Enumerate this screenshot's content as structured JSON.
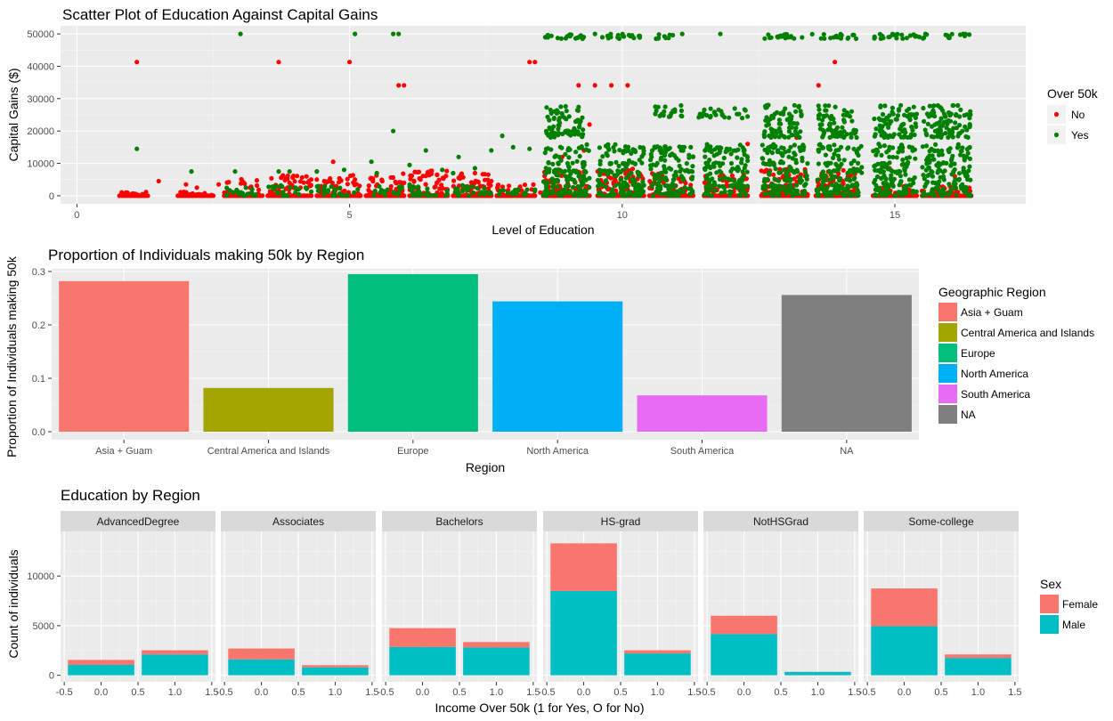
{
  "chart_data": [
    {
      "type": "scatter",
      "title": "Scatter Plot of Education Against Capital Gains",
      "xlabel": "Level of Education",
      "ylabel": "Capital Gains ($)",
      "xlim": [
        -0.3,
        17.4
      ],
      "ylim": [
        -2500,
        52500
      ],
      "xticks": [
        0,
        5,
        10,
        15
      ],
      "yticks": [
        0,
        10000,
        20000,
        30000,
        40000,
        50000
      ],
      "grid": true,
      "legend": {
        "title": "Over 50k",
        "position": "right",
        "entries": [
          "No",
          "Yes"
        ]
      },
      "series": [
        {
          "name": "No",
          "color": "#ff0000",
          "points": [
            [
              1.1,
              41300
            ],
            [
              3.7,
              41300
            ],
            [
              8.3,
              41300
            ],
            [
              8.4,
              41300
            ],
            [
              13.9,
              41300
            ],
            [
              5.0,
              41300
            ],
            [
              5.9,
              34100
            ],
            [
              6.0,
              34100
            ],
            [
              9.2,
              34100
            ],
            [
              9.5,
              34100
            ],
            [
              9.8,
              34100
            ],
            [
              10.1,
              34100
            ],
            [
              13.6,
              34100
            ],
            [
              9.4,
              22000
            ],
            [
              4.7,
              10500
            ],
            [
              9.3,
              14000
            ],
            [
              13.2,
              18000
            ],
            [
              8.9,
              12000
            ],
            [
              13.8,
              14500
            ],
            [
              12.3,
              16000
            ],
            [
              1.5,
              4500
            ],
            [
              2.0,
              3500
            ],
            [
              2.6,
              3500
            ],
            [
              0.9,
              1000
            ],
            [
              1.2,
              500
            ],
            [
              2.2,
              2500
            ],
            [
              3.9,
              4000
            ],
            [
              4.1,
              2500
            ],
            [
              4.4,
              5000
            ],
            [
              4.7,
              3000
            ],
            [
              5.1,
              5000
            ],
            [
              5.6,
              4500
            ],
            [
              6.0,
              4000
            ],
            [
              6.3,
              5000
            ],
            [
              6.6,
              4000
            ],
            [
              7.0,
              5500
            ],
            [
              7.3,
              7000
            ],
            [
              7.6,
              4500
            ],
            [
              7.9,
              1500
            ],
            [
              8.1,
              2000
            ],
            [
              8.5,
              1000
            ],
            [
              15.2,
              3000
            ],
            [
              15.5,
              1500
            ],
            [
              15.9,
              2500
            ],
            [
              16.1,
              6000
            ],
            [
              14.9,
              8500
            ],
            [
              16.1,
              3500
            ],
            [
              15.7,
              1500
            ],
            [
              16.3,
              1000
            ]
          ],
          "bands": [
            [
              0.78,
              1.3,
              0,
              1200
            ],
            [
              1.85,
              2.5,
              0,
              1200
            ],
            [
              2.7,
              3.4,
              0,
              5000
            ],
            [
              3.5,
              4.3,
              0,
              6500
            ],
            [
              4.4,
              5.2,
              0,
              6500
            ],
            [
              5.3,
              6.0,
              0,
              7000
            ],
            [
              6.1,
              6.8,
              0,
              7500
            ],
            [
              6.9,
              7.6,
              0,
              7000
            ],
            [
              7.7,
              8.4,
              0,
              3500
            ],
            [
              8.55,
              9.4,
              0,
              8500
            ],
            [
              9.55,
              10.4,
              0,
              8500
            ],
            [
              10.5,
              11.3,
              0,
              7000
            ],
            [
              11.5,
              12.3,
              0,
              6500
            ],
            [
              12.55,
              13.4,
              0,
              8500
            ],
            [
              13.55,
              14.3,
              0,
              8000
            ],
            [
              14.6,
              15.4,
              0,
              3000
            ],
            [
              15.5,
              16.4,
              0,
              3000
            ]
          ]
        },
        {
          "name": "Yes",
          "color": "#008000",
          "points": [
            [
              3.0,
              50000
            ],
            [
              5.1,
              50000
            ],
            [
              5.8,
              50000
            ],
            [
              5.9,
              50000
            ],
            [
              11.1,
              50000
            ],
            [
              11.8,
              50000
            ],
            [
              9.5,
              50000
            ],
            [
              1.1,
              14500
            ],
            [
              2.1,
              7500
            ],
            [
              3.9,
              7500
            ],
            [
              5.8,
              20000
            ],
            [
              6.4,
              14000
            ],
            [
              7.0,
              12000
            ],
            [
              7.6,
              14000
            ],
            [
              8.0,
              15000
            ],
            [
              7.8,
              18500
            ],
            [
              3.7,
              7500
            ],
            [
              4.4,
              7500
            ],
            [
              4.9,
              8000
            ],
            [
              5.4,
              10500
            ],
            [
              6.1,
              9500
            ],
            [
              6.7,
              8000
            ],
            [
              7.3,
              8500
            ],
            [
              8.3,
              14500
            ],
            [
              3.1,
              2500
            ],
            [
              2.9,
              7500
            ],
            [
              6.9,
              7000
            ],
            [
              5.5,
              7000
            ],
            [
              14.8,
              10000
            ],
            [
              15.8,
              9000
            ],
            [
              11.6,
              14000
            ],
            [
              11.3,
              12000
            ],
            [
              12.2,
              24000
            ],
            [
              14.3,
              18000
            ]
          ],
          "bands": [
            [
              8.55,
              9.4,
              48500,
              50000
            ],
            [
              9.55,
              10.4,
              48500,
              50000
            ],
            [
              10.6,
              11.0,
              48500,
              50000
            ],
            [
              12.55,
              13.5,
              48500,
              50000
            ],
            [
              13.6,
              14.3,
              48500,
              50000
            ],
            [
              14.6,
              15.8,
              48500,
              50000
            ],
            [
              15.8,
              16.4,
              48500,
              50000
            ],
            [
              8.55,
              9.4,
              0,
              16000
            ],
            [
              9.55,
              10.4,
              0,
              16000
            ],
            [
              10.5,
              11.3,
              0,
              16000
            ],
            [
              11.5,
              12.3,
              0,
              16000
            ],
            [
              12.55,
              13.4,
              0,
              16000
            ],
            [
              13.55,
              14.4,
              0,
              16000
            ],
            [
              14.6,
              15.4,
              0,
              16000
            ],
            [
              15.5,
              16.4,
              0,
              16000
            ],
            [
              8.6,
              9.3,
              18000,
              28000
            ],
            [
              12.6,
              13.3,
              18000,
              28000
            ],
            [
              13.6,
              14.3,
              18000,
              28000
            ],
            [
              14.6,
              15.4,
              18000,
              28000
            ],
            [
              15.5,
              16.4,
              18000,
              28000
            ],
            [
              10.6,
              11.1,
              24000,
              28000
            ],
            [
              11.4,
              12.3,
              24000,
              27000
            ],
            [
              2.7,
              3.4,
              0,
              2500
            ],
            [
              3.5,
              4.3,
              0,
              3000
            ],
            [
              4.4,
              5.2,
              0,
              3000
            ],
            [
              5.3,
              6.0,
              0,
              3000
            ],
            [
              6.1,
              6.8,
              0,
              3500
            ],
            [
              6.9,
              7.6,
              0,
              3500
            ],
            [
              7.7,
              8.4,
              0,
              2000
            ]
          ]
        }
      ]
    },
    {
      "type": "bar",
      "title": "Proportion of Individuals making 50k by Region",
      "xlabel": "Region",
      "ylabel": "Proportion of Individuals making 50k",
      "ylim": [
        -0.015,
        0.305
      ],
      "yticks": [
        0.0,
        0.1,
        0.2,
        0.3
      ],
      "ytick_labels": [
        "0.0",
        "0.1",
        "0.2",
        "0.3"
      ],
      "categories": [
        "Asia + Guam",
        "Central America and Islands",
        "Europe",
        "North America",
        "South America",
        "NA"
      ],
      "values": [
        0.282,
        0.082,
        0.295,
        0.244,
        0.068,
        0.256
      ],
      "colors": [
        "#f8766d",
        "#a3a500",
        "#00bf7d",
        "#00b0f6",
        "#e76bf3",
        "#7f7f7f"
      ],
      "legend": {
        "title": "Geographic Region",
        "position": "right",
        "entries": [
          "Asia + Guam",
          "Central America and Islands",
          "Europe",
          "North America",
          "South America",
          "NA"
        ]
      }
    },
    {
      "type": "bar",
      "stacked": true,
      "faceted": true,
      "title": "Education by Region",
      "xlabel": "Income Over 50k (1 for Yes, O for No)",
      "ylabel": "Count of individuals",
      "xlim": [
        -0.55,
        1.55
      ],
      "xticks": [
        -0.5,
        0.0,
        0.5,
        1.0,
        1.5
      ],
      "xtick_labels": [
        "-0.5",
        "0.0",
        "0.5",
        "1.0",
        "1.5"
      ],
      "ylim": [
        -660,
        14500
      ],
      "yticks": [
        0,
        5000,
        10000
      ],
      "legend": {
        "title": "Sex",
        "position": "right",
        "entries": [
          "Female",
          "Male"
        ]
      },
      "series_colors": {
        "Female": "#f8766d",
        "Male": "#00bfc4"
      },
      "x": [
        0,
        1
      ],
      "facets": [
        {
          "label": "AdvancedDegree",
          "male": [
            1050,
            2100
          ],
          "female": [
            500,
            420
          ]
        },
        {
          "label": "Associates",
          "male": [
            1600,
            800
          ],
          "female": [
            1100,
            220
          ]
        },
        {
          "label": "Bachelors",
          "male": [
            2850,
            2800
          ],
          "female": [
            1900,
            550
          ]
        },
        {
          "label": "HS-grad",
          "male": [
            8500,
            2200
          ],
          "female": [
            4800,
            320
          ]
        },
        {
          "label": "NotHSGrad",
          "male": [
            4150,
            330
          ],
          "female": [
            1850,
            20
          ]
        },
        {
          "label": "Some-college",
          "male": [
            4950,
            1750
          ],
          "female": [
            3800,
            350
          ]
        }
      ]
    }
  ]
}
